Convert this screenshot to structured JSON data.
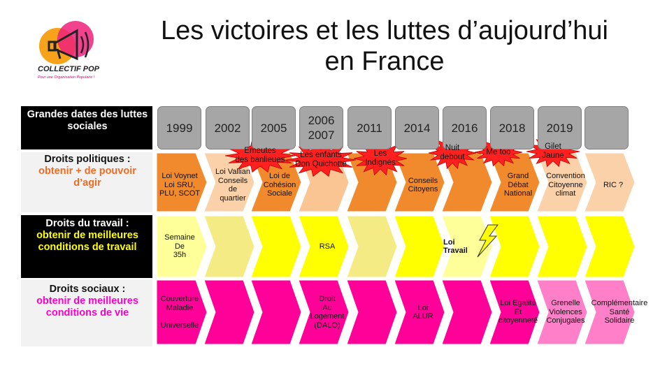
{
  "logo": {
    "name": "COLLECTIF POP",
    "tagline": "Pour une Organisation Populaire !"
  },
  "title": {
    "line1": "Les  victoires et les luttes d’aujourd’hui",
    "line2": "en France"
  },
  "rows": {
    "header": {
      "label": "Grandes dates des luttes sociales"
    },
    "political": {
      "label": "Droits politiques :",
      "sub": "obtenir + de pouvoir d’agir"
    },
    "work": {
      "label": "Droits du travail :",
      "sub": "obtenir de meilleures conditions de travail"
    },
    "social": {
      "label": "Droits sociaux :",
      "sub": "obtenir de meilleures conditions de vie"
    }
  },
  "years": [
    "1999",
    "2002",
    "2005",
    "2006\n2007",
    "2011",
    "2014",
    "2016",
    "2018",
    "2019",
    ""
  ],
  "political_cells": [
    "Loi Voynet\nLoi SRU,\nPLU, SCOT",
    "Loi Vallian\nConseils\nde\nquartier",
    "Loi de\nCohésion\nSociale",
    "",
    "",
    "Conseils\nCitoyens",
    "",
    "Grand\nDébat\nNational",
    "Convention\nCitoyenne\nclimat",
    "RIC ?"
  ],
  "work_cells": [
    "Semaine\nDe\n35h",
    "",
    "",
    "RSA",
    "",
    "",
    "Loi\nTravail",
    "",
    "",
    ""
  ],
  "social_cells": [
    "Couverture\nMaladie\n\nUniverselle",
    "",
    "",
    "Droit\nAu\nLogement\n(DALO)",
    "",
    "Loi\nALUR",
    "",
    "Loi Egalité\nEt\ncitoyenneté",
    "Grenelle\nViolences\nConjugales",
    "Complémentaire\nSanté\nSolidaire"
  ],
  "struggles": [
    "Emeutes\ndes banlieues",
    "Les enfants\nDon Quichotte",
    "Les\nIndignés",
    "Nuit\ndebout",
    "Me too",
    "Gilet\nJaune"
  ],
  "colors": {
    "political": [
      "#f08a2c",
      "#fad1a8",
      "#f08a2c",
      "#fbc493",
      "#f08a2c",
      "#f08a2c",
      "#f08a2c",
      "#f08a2c",
      "#fad1a8",
      "#fad1a8"
    ],
    "work": [
      "#ffff99",
      "#f5eb85",
      "#ffff00",
      "#ffff00",
      "#f5eb85",
      "#ffff00",
      "#ffff99",
      "#ffff00",
      "#ffff00",
      "#ffff00"
    ],
    "social": [
      "#ff0099",
      "#ff0099",
      "#ff0099",
      "#ff0099",
      "#ff0099",
      "#ff0099",
      "#ff0099",
      "#ff0099",
      "#ff80c8",
      "#ff80c8"
    ],
    "struggle_star": "#ff2020",
    "label_orange": "#f36a21",
    "label_yellow": "#ffff00",
    "label_magenta": "#ff00cc"
  }
}
